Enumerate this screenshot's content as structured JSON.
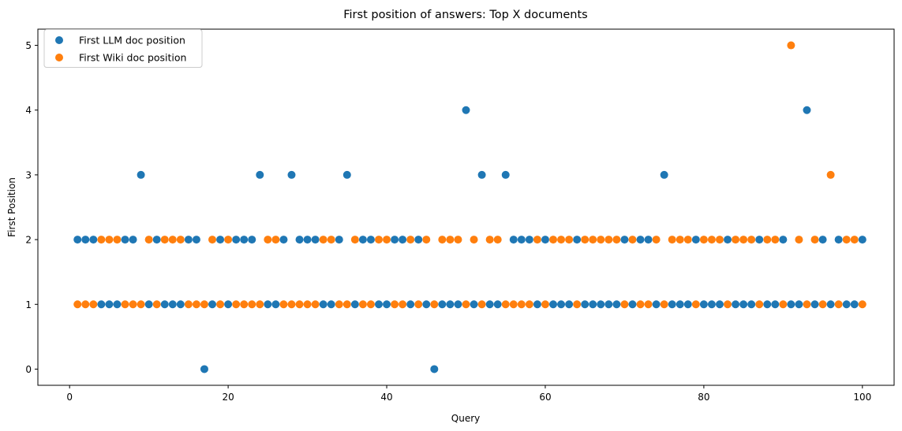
{
  "chart_data": {
    "type": "scatter",
    "title": "First position of answers: Top X documents",
    "xlabel": "Query",
    "ylabel": "First Position",
    "xlim": [
      -4,
      104
    ],
    "ylim": [
      -0.25,
      5.25
    ],
    "xticks": [
      0,
      20,
      40,
      60,
      80,
      100
    ],
    "yticks": [
      0,
      1,
      2,
      3,
      4,
      5
    ],
    "grid": false,
    "legend_position": "top-left",
    "x": [
      1,
      2,
      3,
      4,
      5,
      6,
      7,
      8,
      9,
      10,
      11,
      12,
      13,
      14,
      15,
      16,
      17,
      18,
      19,
      20,
      21,
      22,
      23,
      24,
      25,
      26,
      27,
      28,
      29,
      30,
      31,
      32,
      33,
      34,
      35,
      36,
      37,
      38,
      39,
      40,
      41,
      42,
      43,
      44,
      45,
      46,
      47,
      48,
      49,
      50,
      51,
      52,
      53,
      54,
      55,
      56,
      57,
      58,
      59,
      60,
      61,
      62,
      63,
      64,
      65,
      66,
      67,
      68,
      69,
      70,
      71,
      72,
      73,
      74,
      75,
      76,
      77,
      78,
      79,
      80,
      81,
      82,
      83,
      84,
      85,
      86,
      87,
      88,
      89,
      90,
      91,
      92,
      93,
      94,
      95,
      96,
      97,
      98,
      99,
      100
    ],
    "series": [
      {
        "name": "First LLM doc position",
        "color": "#1f77b4",
        "values": [
          2,
          2,
          2,
          1,
          1,
          1,
          2,
          2,
          3,
          1,
          2,
          1,
          1,
          1,
          2,
          2,
          0,
          1,
          2,
          1,
          2,
          2,
          2,
          3,
          1,
          1,
          2,
          3,
          2,
          2,
          2,
          1,
          1,
          2,
          3,
          1,
          2,
          2,
          1,
          1,
          2,
          2,
          1,
          2,
          1,
          0,
          1,
          1,
          1,
          4,
          1,
          3,
          1,
          1,
          3,
          2,
          2,
          2,
          1,
          2,
          1,
          1,
          1,
          2,
          1,
          1,
          1,
          1,
          1,
          2,
          1,
          2,
          2,
          1,
          3,
          1,
          1,
          1,
          2,
          1,
          1,
          1,
          2,
          1,
          1,
          1,
          2,
          1,
          1,
          2,
          1,
          1,
          4,
          1,
          2,
          1,
          2,
          1,
          1,
          2
        ]
      },
      {
        "name": "First Wiki doc position",
        "color": "#ff7f0e",
        "values": [
          1,
          1,
          1,
          2,
          2,
          2,
          1,
          1,
          1,
          2,
          1,
          2,
          2,
          2,
          1,
          1,
          1,
          2,
          1,
          2,
          1,
          1,
          1,
          1,
          2,
          2,
          1,
          1,
          1,
          1,
          1,
          2,
          2,
          1,
          1,
          2,
          1,
          1,
          2,
          2,
          1,
          1,
          2,
          1,
          2,
          1,
          2,
          2,
          2,
          1,
          2,
          1,
          2,
          2,
          1,
          1,
          1,
          1,
          2,
          1,
          2,
          2,
          2,
          1,
          2,
          2,
          2,
          2,
          2,
          1,
          2,
          1,
          1,
          2,
          1,
          2,
          2,
          2,
          1,
          2,
          2,
          2,
          1,
          2,
          2,
          2,
          1,
          2,
          2,
          1,
          5,
          2,
          1,
          2,
          1,
          3,
          1,
          2,
          2,
          1
        ]
      }
    ]
  }
}
